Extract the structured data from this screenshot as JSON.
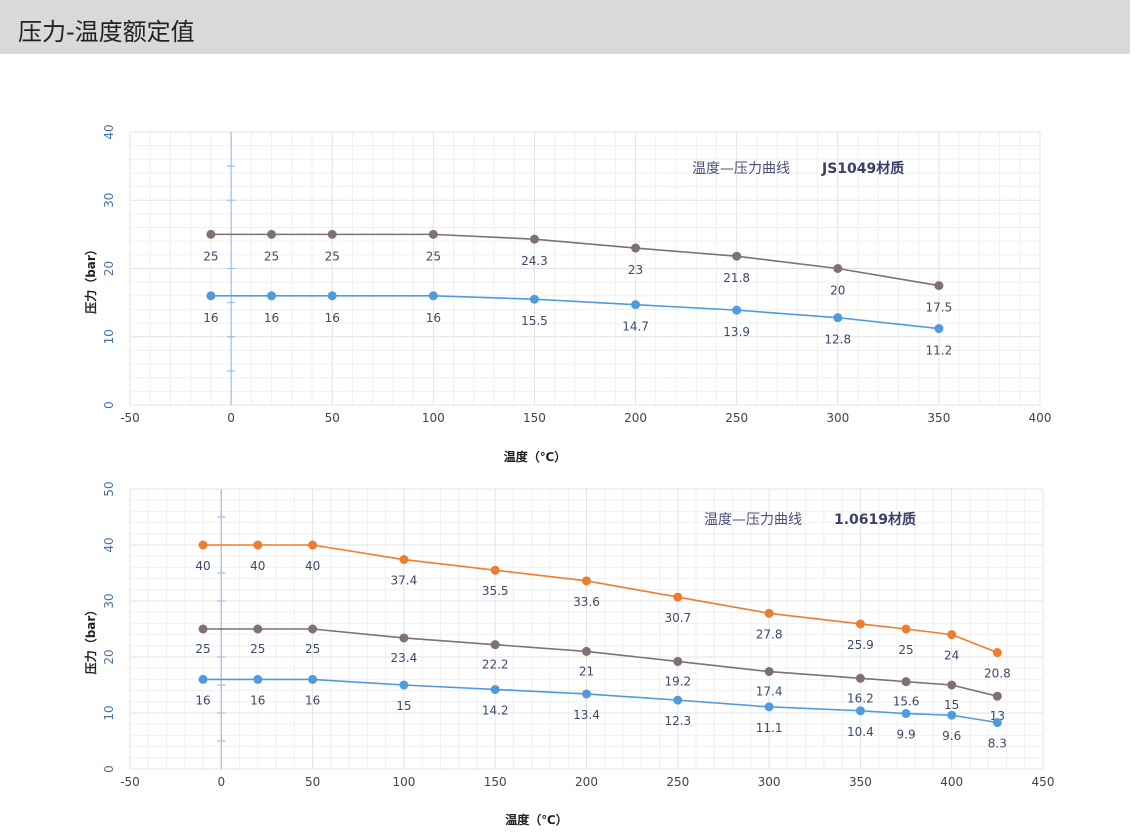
{
  "page": {
    "title": "压力-温度额定值"
  },
  "chart_data": [
    {
      "type": "line",
      "title": "温度—压力曲线",
      "material": "JS1049材质",
      "xlabel": "温度（℃）",
      "ylabel": "压力（bar）",
      "xlim": [
        -50,
        400
      ],
      "ylim": [
        0,
        40
      ],
      "xticks": [
        -50,
        0,
        50,
        100,
        150,
        200,
        250,
        300,
        350,
        400
      ],
      "yticks": [
        0,
        10,
        20,
        30,
        40
      ],
      "series": [
        {
          "name": "grey",
          "color": "#7f7073",
          "x": [
            -10,
            20,
            50,
            100,
            150,
            200,
            250,
            300,
            350
          ],
          "values": [
            25,
            25,
            25,
            25,
            24.3,
            23,
            21.8,
            20,
            17.5
          ],
          "labels": [
            "25",
            "25",
            "25",
            "25",
            "24.3",
            "23",
            "21.8",
            "20",
            "17.5"
          ]
        },
        {
          "name": "blue",
          "color": "#4f9bdc",
          "x": [
            -10,
            20,
            50,
            100,
            150,
            200,
            250,
            300,
            350
          ],
          "values": [
            16,
            16,
            16,
            16,
            15.5,
            14.7,
            13.9,
            12.8,
            11.2
          ],
          "labels": [
            "16",
            "16",
            "16",
            "16",
            "15.5",
            "14.7",
            "13.9",
            "12.8",
            "11.2"
          ]
        }
      ]
    },
    {
      "type": "line",
      "title": "温度—压力曲线",
      "material": "1.0619材质",
      "xlabel": "温度（℃）",
      "ylabel": "压力（bar）",
      "xlim": [
        -50,
        450
      ],
      "ylim": [
        0,
        50
      ],
      "xticks": [
        -50,
        0,
        50,
        100,
        150,
        200,
        250,
        300,
        350,
        400,
        450
      ],
      "yticks": [
        0,
        10,
        20,
        30,
        40,
        50
      ],
      "series": [
        {
          "name": "orange",
          "color": "#ed7d31",
          "x": [
            -10,
            20,
            50,
            100,
            150,
            200,
            250,
            300,
            350,
            375,
            400,
            425
          ],
          "values": [
            40,
            40,
            40,
            37.4,
            35.5,
            33.6,
            30.7,
            27.8,
            25.9,
            25,
            24,
            20.8
          ],
          "labels": [
            "40",
            "40",
            "40",
            "37.4",
            "35.5",
            "33.6",
            "30.7",
            "27.8",
            "25.9",
            "25",
            "24",
            "20.8"
          ]
        },
        {
          "name": "grey",
          "color": "#7f7073",
          "x": [
            -10,
            20,
            50,
            100,
            150,
            200,
            250,
            300,
            350,
            375,
            400,
            425
          ],
          "values": [
            25,
            25,
            25,
            23.4,
            22.2,
            21,
            19.2,
            17.4,
            16.2,
            15.6,
            15,
            13
          ],
          "labels": [
            "25",
            "25",
            "25",
            "23.4",
            "22.2",
            "21",
            "19.2",
            "17.4",
            "16.2",
            "15.6",
            "15",
            "13"
          ]
        },
        {
          "name": "blue",
          "color": "#4f9bdc",
          "x": [
            -10,
            20,
            50,
            100,
            150,
            200,
            250,
            300,
            350,
            375,
            400,
            425
          ],
          "values": [
            16,
            16,
            16,
            15,
            14.2,
            13.4,
            12.3,
            11.1,
            10.4,
            9.9,
            9.6,
            8.3
          ],
          "labels": [
            "16",
            "16",
            "16",
            "15",
            "14.2",
            "13.4",
            "12.3",
            "11.1",
            "10.4",
            "9.9",
            "9.6",
            "8.3"
          ]
        }
      ]
    }
  ]
}
